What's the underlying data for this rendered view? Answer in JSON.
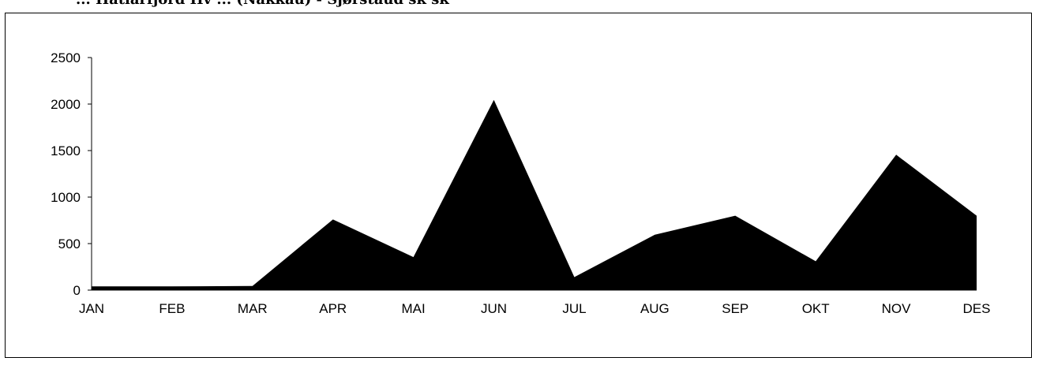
{
  "header": {
    "title": "... Hatlarfjörd Hv ... (Nakkau) - Sjørstaud sk sk"
  },
  "colors": {
    "area_fill": "#000000",
    "axis": "#000000",
    "background": "#ffffff"
  },
  "chart_data": {
    "type": "area",
    "title": "",
    "xlabel": "",
    "ylabel": "",
    "categories": [
      "JAN",
      "FEB",
      "MAR",
      "APR",
      "MAI",
      "JUN",
      "JUL",
      "AUG",
      "SEP",
      "OKT",
      "NOV",
      "DES"
    ],
    "series": [
      {
        "values": [
          40,
          40,
          45,
          760,
          355,
          2045,
          140,
          595,
          800,
          310,
          1455,
          800
        ]
      }
    ],
    "ylim": [
      0,
      2500
    ],
    "yticks": [
      0,
      500,
      1000,
      1500,
      2000,
      2500
    ],
    "grid": false,
    "legend": "none"
  }
}
